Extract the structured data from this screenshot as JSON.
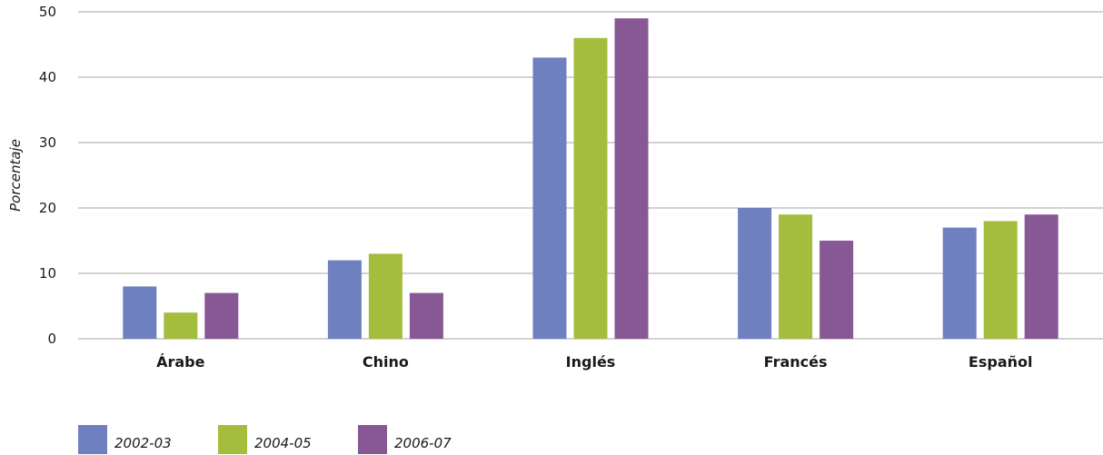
{
  "chart_data": {
    "type": "bar",
    "ylabel": "Porcentaje",
    "ylim": [
      0,
      50
    ],
    "yticks": [
      0,
      10,
      20,
      30,
      40,
      50
    ],
    "grid": true,
    "legend_position": "bottom-left",
    "categories": [
      "Árabe",
      "Chino",
      "Inglés",
      "Francés",
      "Español"
    ],
    "series": [
      {
        "name": "2002-03",
        "color": "#6e80bf",
        "values": [
          8,
          12,
          43,
          20,
          17
        ]
      },
      {
        "name": "2004-05",
        "color": "#a4bd3c",
        "values": [
          4,
          13,
          46,
          19,
          18
        ]
      },
      {
        "name": "2006-07",
        "color": "#875893",
        "values": [
          7,
          7,
          49,
          15,
          19
        ]
      }
    ]
  }
}
